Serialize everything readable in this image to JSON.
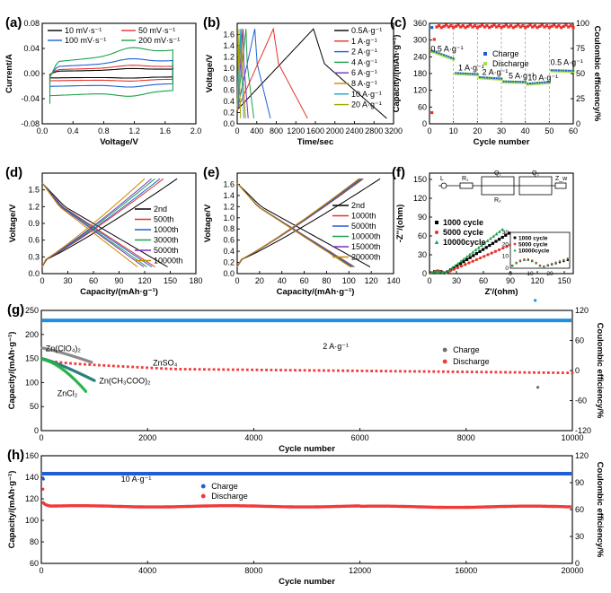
{
  "chart_data": [
    {
      "id": "a",
      "panel_label": "(a)",
      "type": "line",
      "xlabel": "Voltage/V",
      "ylabel": "Current/A",
      "xlim": [
        0,
        2.0
      ],
      "ylim": [
        -0.08,
        0.08
      ],
      "xticks": [
        "0.0",
        "0.4",
        "0.8",
        "1.2",
        "1.6",
        "2.0"
      ],
      "yticks": [
        "-0.08",
        "-0.04",
        "0.00",
        "0.04",
        "0.08"
      ],
      "legend_layout": "two-column-top",
      "series": [
        {
          "name": "10  mV·s⁻¹",
          "color": "#000000",
          "amp": 0.006,
          "pk": 0.01
        },
        {
          "name": "50  mV·s⁻¹",
          "color": "#e8312a",
          "amp": 0.01,
          "pk": 0.016
        },
        {
          "name": "100 mV·s⁻¹",
          "color": "#1f5fd6",
          "amp": 0.018,
          "pk": 0.028
        },
        {
          "name": "200 mV·s⁻¹",
          "color": "#19a24a",
          "amp": 0.03,
          "pk": 0.055
        }
      ]
    },
    {
      "id": "b",
      "panel_label": "(b)",
      "type": "line",
      "xlabel": "Time/sec",
      "ylabel": "Voltage/V",
      "xlim": [
        0,
        3200
      ],
      "ylim": [
        0.0,
        1.8
      ],
      "xticks": [
        "0",
        "400",
        "800",
        "1200",
        "1600",
        "2000",
        "2400",
        "2800",
        "3200"
      ],
      "yticks": [
        "0.0",
        "0.2",
        "0.4",
        "0.6",
        "0.8",
        "1.0",
        "1.2",
        "1.4",
        "1.6"
      ],
      "legend_position": "right",
      "series": [
        {
          "name": "0.5A·g⁻¹",
          "color": "#000000",
          "tc": 1560,
          "td": 1500
        },
        {
          "name": "1   A·g⁻¹",
          "color": "#e8312a",
          "tc": 740,
          "td": 700
        },
        {
          "name": "2   A·g⁻¹",
          "color": "#1f5fd6",
          "tc": 360,
          "td": 320
        },
        {
          "name": "4   A·g⁻¹",
          "color": "#19a24a",
          "tc": 180,
          "td": 160
        },
        {
          "name": "6   A·g⁻¹",
          "color": "#7b2fbe",
          "tc": 120,
          "td": 105
        },
        {
          "name": "8   A·g⁻¹",
          "color": "#c68a00",
          "tc": 90,
          "td": 80
        },
        {
          "name": "10  A·g⁻¹",
          "color": "#1aa6c9",
          "tc": 72,
          "td": 64
        },
        {
          "name": "20  A·g⁻¹",
          "color": "#a8a800",
          "tc": 36,
          "td": 32
        }
      ]
    },
    {
      "id": "c",
      "panel_label": "(c)",
      "type": "scatter",
      "xlabel": "Cycle number",
      "ylabel": "Capacity/(mAh·g⁻¹)",
      "y2label": "Coulombic efficiency/%",
      "xlim": [
        0,
        60
      ],
      "ylim": [
        0,
        360
      ],
      "y2lim": [
        0,
        100
      ],
      "xticks": [
        "0",
        "10",
        "20",
        "30",
        "40",
        "50",
        "60"
      ],
      "yticks": [
        "0",
        "60",
        "120",
        "180",
        "240",
        "300",
        "360"
      ],
      "y2ticks": [
        "0",
        "25",
        "50",
        "75",
        "100"
      ],
      "legend_position": "upper-middle",
      "legend": [
        {
          "name": "Charge",
          "color": "#1f5fd6"
        },
        {
          "name": "Discharge",
          "color": "#a6e04a"
        }
      ],
      "annotations": [
        {
          "text": "0.5 A·g⁻¹",
          "x": 0.5,
          "y": 258
        },
        {
          "text": "1 A·g⁻¹",
          "x": 12,
          "y": 192
        },
        {
          "text": "2 A·g⁻¹",
          "x": 22,
          "y": 175
        },
        {
          "text": "5 A·g⁻¹",
          "x": 33,
          "y": 162
        },
        {
          "text": "10 A·g⁻¹",
          "x": 41,
          "y": 156
        },
        {
          "text": "0.5 A·g⁻¹",
          "x": 50.5,
          "y": 210
        }
      ],
      "segments": [
        {
          "x0": 1,
          "x1": 10,
          "cap": [
            260,
            232
          ]
        },
        {
          "x0": 11,
          "x1": 20,
          "cap": [
            180,
            176
          ]
        },
        {
          "x0": 21,
          "x1": 30,
          "cap": [
            165,
            160
          ]
        },
        {
          "x0": 31,
          "x1": 40,
          "cap": [
            150,
            148
          ]
        },
        {
          "x0": 41,
          "x1": 50,
          "cap": [
            142,
            148
          ]
        },
        {
          "x0": 51,
          "x1": 60,
          "cap": [
            190,
            188
          ]
        }
      ],
      "ce_level": 97
    },
    {
      "id": "d",
      "panel_label": "(d)",
      "type": "line",
      "xlabel": "Capacity/(mAh·g⁻¹)",
      "ylabel": "Voltage/V",
      "xlim": [
        0,
        180
      ],
      "ylim": [
        0.0,
        1.8
      ],
      "xticks": [
        "0",
        "30",
        "60",
        "90",
        "120",
        "150",
        "180"
      ],
      "yticks": [
        "0.0",
        "0.3",
        "0.6",
        "0.9",
        "1.2",
        "1.5"
      ],
      "legend_position": "right",
      "series": [
        {
          "name": "2nd",
          "color": "#000000",
          "cap": 158
        },
        {
          "name": "500th",
          "color": "#e8312a",
          "cap": 142
        },
        {
          "name": "1000th",
          "color": "#1f5fd6",
          "cap": 138
        },
        {
          "name": "3000th",
          "color": "#19a24a",
          "cap": 132
        },
        {
          "name": "5000th",
          "color": "#7b2fbe",
          "cap": 128
        },
        {
          "name": "10000th",
          "color": "#c68a00",
          "cap": 120
        }
      ]
    },
    {
      "id": "e",
      "panel_label": "(e)",
      "type": "line",
      "xlabel": "Capacity/(mAh·g⁻¹)",
      "ylabel": "Voltage/V",
      "xlim": [
        0,
        140
      ],
      "ylim": [
        0.0,
        1.8
      ],
      "xticks": [
        "0",
        "20",
        "40",
        "60",
        "80",
        "100",
        "120",
        "140"
      ],
      "yticks": [
        "0.0",
        "0.2",
        "0.4",
        "0.6",
        "0.8",
        "1.0",
        "1.2",
        "1.4",
        "1.6"
      ],
      "legend_position": "right",
      "series": [
        {
          "name": "2nd",
          "color": "#000000",
          "cap": 128
        },
        {
          "name": "1000th",
          "color": "#e8312a",
          "cap": 113
        },
        {
          "name": "5000th",
          "color": "#1f5fd6",
          "cap": 112
        },
        {
          "name": "10000th",
          "color": "#19a24a",
          "cap": 111
        },
        {
          "name": "15000th",
          "color": "#7b2fbe",
          "cap": 110
        },
        {
          "name": "20000th",
          "color": "#c68a00",
          "cap": 109
        }
      ]
    },
    {
      "id": "f",
      "panel_label": "(f)",
      "type": "scatter",
      "xlabel": "Z'/(ohm)",
      "ylabel": "-Z''/(ohm)",
      "xlim": [
        0,
        160
      ],
      "ylim": [
        0,
        160
      ],
      "xticks": [
        "0",
        "30",
        "60",
        "90",
        "120",
        "150"
      ],
      "yticks": [
        "0",
        "30",
        "60",
        "90",
        "120",
        "150"
      ],
      "legend_position": "left-middle",
      "series": [
        {
          "name": "1000  cycle",
          "color": "#000000",
          "marker": "square",
          "slope": 0.9
        },
        {
          "name": "5000  cycle",
          "color": "#e8312a",
          "marker": "circle",
          "slope": 0.62
        },
        {
          "name": "10000cycle",
          "color": "#19a24a",
          "marker": "triangle",
          "slope": 1.1
        }
      ],
      "circuit_labels": [
        "L",
        "R₁",
        "Q₁",
        "R₂",
        "Q₂",
        "Z_w"
      ],
      "inset": {
        "xlim": [
          0,
          30
        ],
        "ylim": [
          0,
          30
        ],
        "xticks": [
          "0",
          "10",
          "20"
        ],
        "yticks": [
          "0",
          "10",
          "20",
          "30"
        ],
        "legend": [
          "1000  cycle",
          "5000  cycle",
          "10000cycle"
        ]
      }
    },
    {
      "id": "g",
      "panel_label": "(g)",
      "type": "scatter",
      "xlabel": "Cycle number",
      "ylabel": "Capacity/(mAh·g⁻¹)",
      "y2label": "Coulombic efficiency/%",
      "xlim": [
        0,
        10000
      ],
      "ylim": [
        0,
        250
      ],
      "y2lim": [
        -120,
        120
      ],
      "xticks": [
        "0",
        "2000",
        "4000",
        "6000",
        "8000",
        "10000"
      ],
      "yticks": [
        "0",
        "50",
        "100",
        "150",
        "200",
        "250"
      ],
      "y2ticks": [
        "-120",
        "-60",
        "0",
        "60",
        "120"
      ],
      "legend_position": "upper-middle",
      "legend": [
        {
          "name": "Charge",
          "color": "#6e6e6e"
        },
        {
          "name": "Discharge",
          "color": "#f03a3a"
        }
      ],
      "annotations": [
        {
          "text": "2 A·g⁻¹",
          "x": 5300,
          "y": 170
        },
        {
          "text": "Zn(ClO₄)₂",
          "x": 80,
          "y": 165
        },
        {
          "text": "ZnSO₄",
          "x": 2100,
          "y": 135
        },
        {
          "text": "Zn(CH₃COO)₂",
          "x": 1090,
          "y": 98
        },
        {
          "text": "ZnCl₂",
          "x": 300,
          "y": 72
        }
      ],
      "ce_level": 100,
      "series": [
        {
          "name": "ZnSO4",
          "color": "#f03a3a",
          "start": 142,
          "end": 120,
          "until": 10000
        },
        {
          "name": "Zn(ClO4)2",
          "color": "#8a8a8a",
          "start": 172,
          "end": 142,
          "until": 950
        },
        {
          "name": "Zn(CH3COO)2",
          "color": "#2a7f7f",
          "start": 150,
          "end": 104,
          "until": 1000
        },
        {
          "name": "ZnCl2",
          "color": "#29b24a",
          "start": 148,
          "end": 80,
          "until": 850
        }
      ]
    },
    {
      "id": "h",
      "panel_label": "(h)",
      "type": "scatter",
      "xlabel": "Cycle number",
      "ylabel": "Capacity/(mAh·g⁻¹)",
      "y2label": "Coulombic efficiency/%",
      "xlim": [
        0,
        20000
      ],
      "ylim": [
        60,
        160
      ],
      "y2lim": [
        0,
        120
      ],
      "xticks": [
        "0",
        "4000",
        "8000",
        "12000",
        "16000",
        "20000"
      ],
      "yticks": [
        "60",
        "80",
        "100",
        "120",
        "140",
        "160"
      ],
      "y2ticks": [
        "0",
        "30",
        "60",
        "90",
        "120"
      ],
      "legend_position": "upper-middle",
      "legend": [
        {
          "name": "Charge",
          "color": "#1f5fd6"
        },
        {
          "name": "Discharge",
          "color": "#f03a3a"
        }
      ],
      "annotations": [
        {
          "text": "10 A·g⁻¹",
          "x": 3000,
          "y": 136
        }
      ],
      "ce_level": 100,
      "cap_level": 113
    }
  ]
}
